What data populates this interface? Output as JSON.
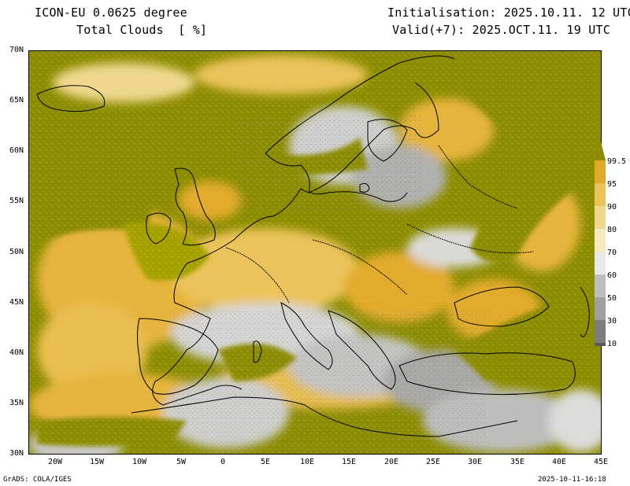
{
  "header": {
    "model": "ICON-EU 0.0625 degree",
    "field": "Total Clouds  [ %]",
    "init": "Initialisation: 2025.10.11. 12 UTC",
    "valid": "Valid(+7): 2025.OCT.11. 19 UTC"
  },
  "axes": {
    "lat_labels": [
      "70N",
      "65N",
      "60N",
      "55N",
      "50N",
      "45N",
      "40N",
      "35N",
      "30N"
    ],
    "lon_labels": [
      "20W",
      "15W",
      "10W",
      "5W",
      "0",
      "5E",
      "10E",
      "15E",
      "20E",
      "25E",
      "30E",
      "35E",
      "40E",
      "45E"
    ]
  },
  "colorbar": {
    "levels": [
      "99.5",
      "95",
      "90",
      "80",
      "70",
      "60",
      "50",
      "30",
      "10"
    ],
    "colors": [
      "#8c8c00",
      "#e2aa2a",
      "#ebc35a",
      "#efd88e",
      "#f3ebbf",
      "#e8e8e8",
      "#bebebe",
      "#a0a0a0",
      "#7d7d7d",
      "#5a5a5a"
    ]
  },
  "footer": {
    "left": "GrADS: COLA/IGES",
    "right": "2025-10-11-16:18"
  }
}
